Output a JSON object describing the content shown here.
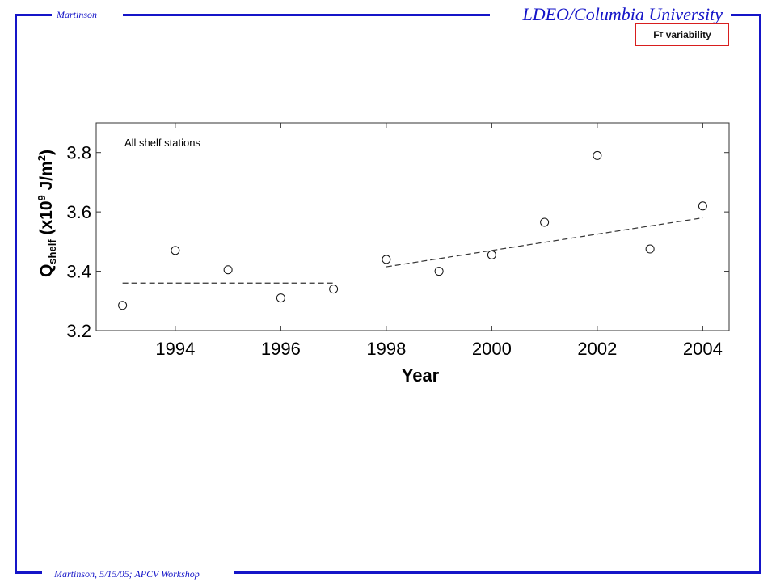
{
  "header": {
    "author": "Martinson",
    "institution": "LDEO/Columbia University",
    "badge_main": "F",
    "badge_sub": "T",
    "badge_rest": " variability"
  },
  "footer": {
    "text": "Martinson, 5/15/05; APCV Workshop"
  },
  "chart_data": {
    "type": "scatter",
    "ylabel_main": "Q",
    "ylabel_sub": "shelf",
    "ylabel_mid": " (x10",
    "ylabel_sup1": "9",
    "ylabel_unit": " J/m",
    "ylabel_sup2": "2",
    "ylabel_end": ")",
    "xlabel": "Year",
    "annotation": "All shelf stations",
    "xlim": [
      1992.5,
      2004.5
    ],
    "ylim": [
      3.2,
      3.9
    ],
    "xticks": [
      1994,
      1996,
      1998,
      2000,
      2002,
      2004
    ],
    "yticks": [
      3.2,
      3.4,
      3.6,
      3.8
    ],
    "points": [
      {
        "x": 1993,
        "y": 3.285
      },
      {
        "x": 1994,
        "y": 3.47
      },
      {
        "x": 1995,
        "y": 3.405
      },
      {
        "x": 1996,
        "y": 3.31
      },
      {
        "x": 1997,
        "y": 3.34
      },
      {
        "x": 1998,
        "y": 3.44
      },
      {
        "x": 1999,
        "y": 3.4
      },
      {
        "x": 2000,
        "y": 3.455
      },
      {
        "x": 2001,
        "y": 3.565
      },
      {
        "x": 2002,
        "y": 3.79
      },
      {
        "x": 2003,
        "y": 3.475
      },
      {
        "x": 2004,
        "y": 3.62
      }
    ],
    "trend_lines": [
      {
        "x": [
          1993,
          1997
        ],
        "y": [
          3.36,
          3.36
        ]
      },
      {
        "x": [
          1998,
          2004
        ],
        "y": [
          3.415,
          3.58
        ]
      }
    ],
    "grid": false
  }
}
